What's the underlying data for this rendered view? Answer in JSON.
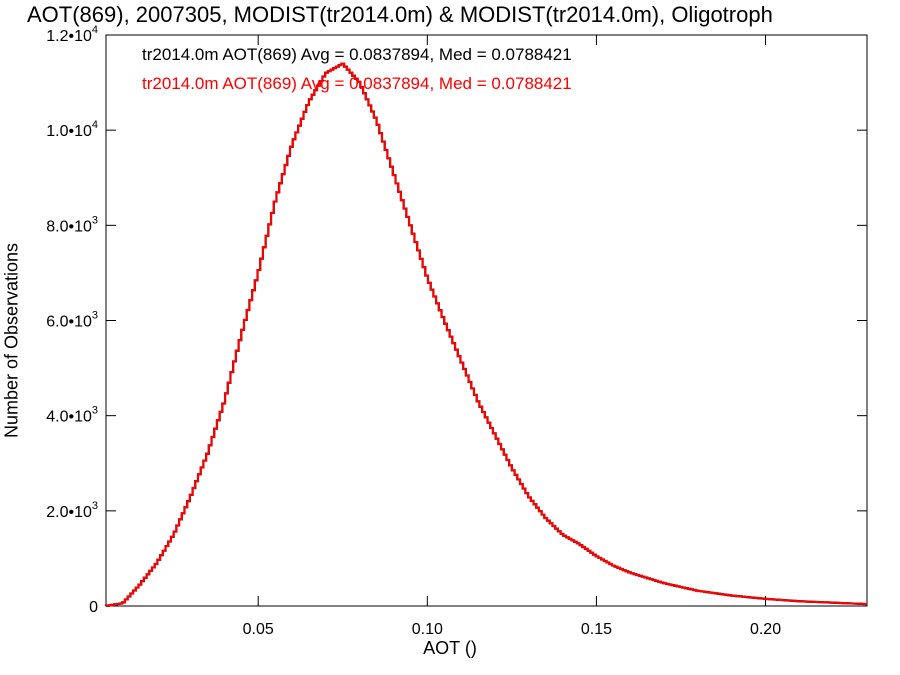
{
  "chart_data": {
    "type": "line",
    "title": "AOT(869), 2007305, MODIST(tr2014.0m) & MODIST(tr2014.0m), Oligotroph",
    "xlabel": "AOT ()",
    "ylabel": "Number of Observations",
    "xlim": [
      0.005,
      0.23
    ],
    "ylim": [
      0,
      12000
    ],
    "grid": false,
    "x_ticks": [
      {
        "value": 0.05,
        "label": "0.05"
      },
      {
        "value": 0.1,
        "label": "0.10"
      },
      {
        "value": 0.15,
        "label": "0.15"
      },
      {
        "value": 0.2,
        "label": "0.20"
      }
    ],
    "y_ticks": [
      {
        "value": 0,
        "mant": "0",
        "exp": ""
      },
      {
        "value": 2000,
        "mant": "2.0•10",
        "exp": "3"
      },
      {
        "value": 4000,
        "mant": "4.0•10",
        "exp": "3"
      },
      {
        "value": 6000,
        "mant": "6.0•10",
        "exp": "3"
      },
      {
        "value": 8000,
        "mant": "8.0•10",
        "exp": "3"
      },
      {
        "value": 10000,
        "mant": "1.0•10",
        "exp": "4"
      },
      {
        "value": 12000,
        "mant": "1.2•10",
        "exp": "4"
      }
    ],
    "annotations": [
      {
        "text": "tr2014.0m AOT(869) Avg = 0.0837894, Med = 0.0788421",
        "color": "#000000"
      },
      {
        "text": "tr2014.0m AOT(869) Avg = 0.0837894, Med = 0.0788421",
        "color": "#ff0000"
      }
    ],
    "series": [
      {
        "color": "#ff0000",
        "x": [
          0.005,
          0.01,
          0.015,
          0.02,
          0.025,
          0.03,
          0.035,
          0.04,
          0.045,
          0.05,
          0.055,
          0.06,
          0.065,
          0.07,
          0.075,
          0.08,
          0.085,
          0.09,
          0.095,
          0.1,
          0.105,
          0.11,
          0.115,
          0.12,
          0.125,
          0.13,
          0.135,
          0.14,
          0.145,
          0.15,
          0.155,
          0.16,
          0.17,
          0.18,
          0.19,
          0.2,
          0.21,
          0.22,
          0.23
        ],
        "y": [
          0,
          60,
          450,
          900,
          1500,
          2300,
          3200,
          4300,
          5700,
          7000,
          8500,
          9700,
          10600,
          11200,
          11400,
          11000,
          10200,
          9100,
          8000,
          6900,
          6000,
          5150,
          4300,
          3600,
          2900,
          2300,
          1850,
          1500,
          1300,
          1050,
          850,
          700,
          480,
          320,
          220,
          150,
          100,
          70,
          40
        ]
      }
    ]
  }
}
